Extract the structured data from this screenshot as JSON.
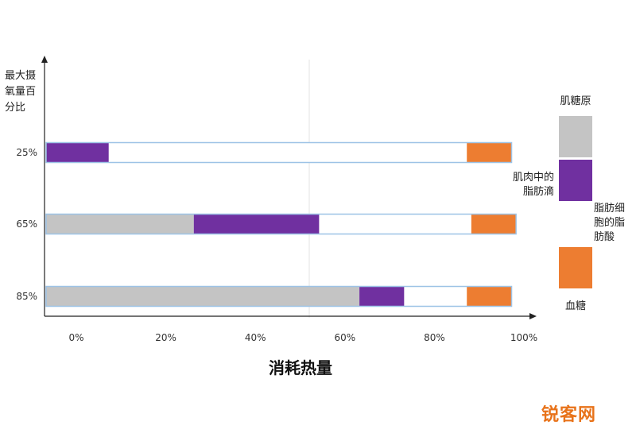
{
  "chart_data": {
    "type": "bar",
    "orientation": "horizontal",
    "stacked": true,
    "title": "",
    "xlabel": "消耗热量",
    "ylabel": "最大摄氧量百分比",
    "ylabel_lines": [
      "最大摄",
      "氧量百",
      "分比"
    ],
    "x_ticks": [
      "0%",
      "20%",
      "40%",
      "60%",
      "80%",
      "100%"
    ],
    "xlim": [
      0,
      100
    ],
    "categories": [
      "25%",
      "65%",
      "85%"
    ],
    "colors": {
      "glycogen": "#c4c4c4",
      "muscle_fat": "#7030a0",
      "fat_cell_fa": "#ffffff",
      "blood_sugar": "#ed7d31",
      "bar_outline": "#9dc3e6"
    },
    "series": [
      {
        "key": "glycogen",
        "name": "肌糖原",
        "values": [
          0,
          33,
          70
        ]
      },
      {
        "key": "muscle_fat",
        "name": "肌肉中的脂肪滴",
        "values": [
          14,
          28,
          10
        ]
      },
      {
        "key": "fat_cell_fa",
        "name": "脂肪细胞的脂肪酸",
        "values": [
          80,
          34,
          14
        ]
      },
      {
        "key": "blood_sugar",
        "name": "血糖",
        "values": [
          10,
          10,
          10
        ]
      }
    ],
    "legend": {
      "position": "right",
      "items": [
        {
          "key": "glycogen",
          "lines": [
            "肌糖原"
          ]
        },
        {
          "key": "muscle_fat",
          "lines": [
            "肌肉中的",
            "脂肪滴"
          ]
        },
        {
          "key": "fat_cell_fa",
          "lines": [
            "脂肪细",
            "胞的脂",
            "肪酸"
          ]
        },
        {
          "key": "blood_sugar",
          "lines": [
            "血糖"
          ]
        }
      ]
    },
    "grid": false
  },
  "watermark": "锐客网"
}
